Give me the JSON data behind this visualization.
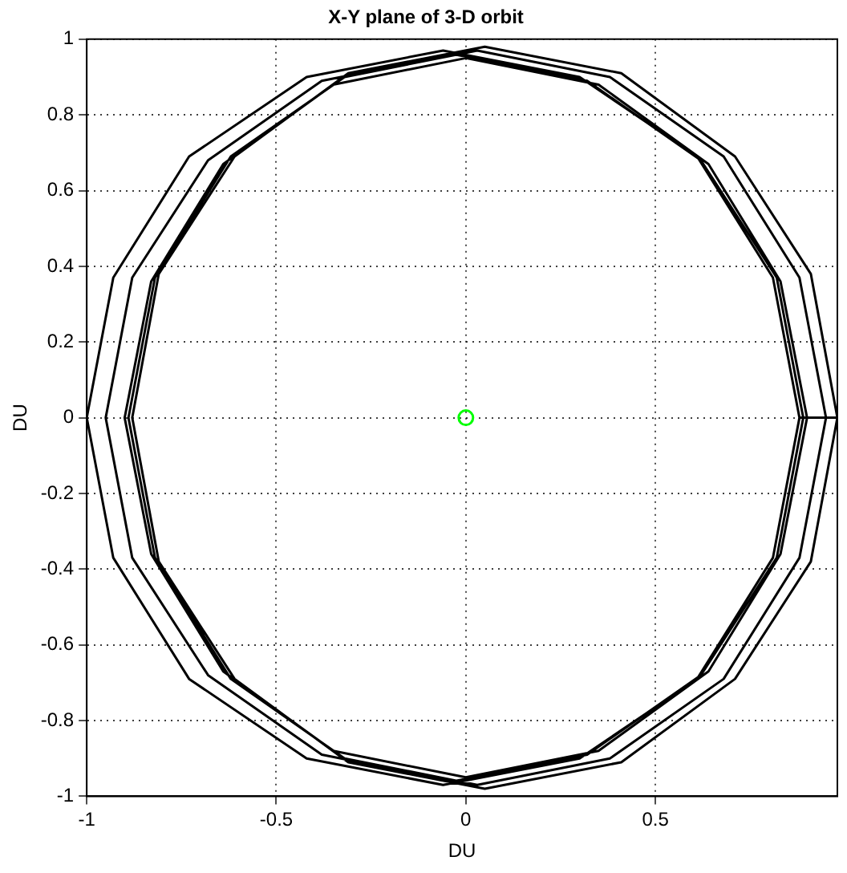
{
  "chart_data": {
    "type": "line",
    "title": "X-Y plane of 3-D orbit",
    "xlabel": "DU",
    "ylabel": "DU",
    "xlim": [
      -1,
      0.98
    ],
    "xticks": [
      -1,
      -0.5,
      0,
      0.5
    ],
    "ylim": [
      -1,
      1
    ],
    "yticks": [
      -1,
      -0.8,
      -0.6,
      -0.4,
      -0.2,
      0,
      0.2,
      0.4,
      0.6,
      0.8,
      1
    ],
    "grid": true,
    "legend": false,
    "series": [
      {
        "type": "line",
        "color": "#000000",
        "marker": "none",
        "x": [
          0.88,
          0.81,
          0.61,
          0.3,
          -0.06,
          -0.42,
          -0.73,
          -0.93,
          -1,
          -0.93,
          -0.73,
          -0.42,
          -0.06,
          0.3,
          0.61,
          0.81,
          0.88,
          0.89,
          0.82,
          0.62,
          0.32,
          -0.03,
          -0.38,
          -0.68,
          -0.88,
          -0.95,
          -0.88,
          -0.68,
          -0.38,
          -0.03,
          0.32,
          0.62,
          0.82,
          0.89,
          0.9,
          0.83,
          0.64,
          0.35,
          0,
          -0.35,
          -0.64,
          -0.83,
          -0.9,
          -0.83,
          -0.64,
          -0.35,
          0,
          0.35,
          0.64,
          0.83,
          0.9,
          0.95,
          0.88,
          0.68,
          0.38,
          0.03,
          -0.32,
          -0.62,
          -0.82,
          -0.89,
          -0.82,
          -0.62,
          -0.32,
          0.03,
          0.38,
          0.68,
          0.88,
          0.95,
          0.98,
          0.91,
          0.71,
          0.41,
          0.05,
          -0.31,
          -0.61,
          -0.81,
          -0.88,
          -0.81,
          -0.61,
          -0.31,
          0.05,
          0.41,
          0.71,
          0.91,
          0.98
        ],
        "values": [
          0,
          0.37,
          0.69,
          0.9,
          0.97,
          0.9,
          0.69,
          0.37,
          0,
          -0.37,
          -0.69,
          -0.9,
          -0.97,
          -0.9,
          -0.69,
          -0.37,
          0,
          0,
          0.37,
          0.68,
          0.89,
          0.96,
          0.89,
          0.68,
          0.37,
          0,
          -0.37,
          -0.68,
          -0.89,
          -0.96,
          -0.89,
          -0.68,
          -0.37,
          0,
          0,
          0.36,
          0.67,
          0.88,
          0.95,
          0.88,
          0.67,
          0.36,
          0,
          -0.36,
          -0.67,
          -0.88,
          -0.95,
          -0.88,
          -0.67,
          -0.36,
          0,
          0,
          0.37,
          0.69,
          0.9,
          0.97,
          0.9,
          0.69,
          0.37,
          0,
          -0.37,
          -0.69,
          -0.9,
          -0.97,
          -0.9,
          -0.69,
          -0.37,
          0,
          0,
          0.38,
          0.69,
          0.91,
          0.98,
          0.91,
          0.69,
          0.38,
          0,
          -0.38,
          -0.69,
          -0.91,
          -0.98,
          -0.91,
          -0.69,
          -0.38,
          0
        ]
      },
      {
        "type": "scatter",
        "color": "#00ff00",
        "marker": "circle",
        "x": [
          0
        ],
        "values": [
          0
        ]
      }
    ]
  }
}
